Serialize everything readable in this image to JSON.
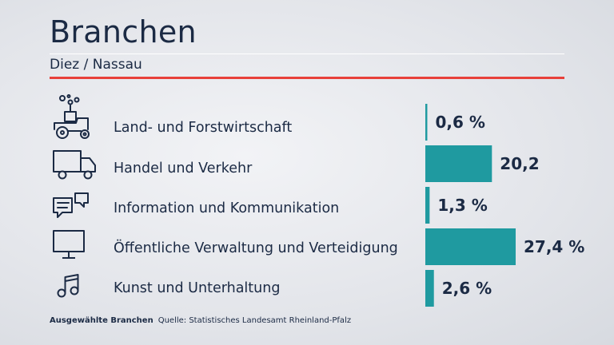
{
  "header": {
    "title": "Branchen",
    "subtitle": "Diez / Nassau"
  },
  "footer": {
    "label": "Ausgewählte Branchen",
    "source": "Quelle: Statistisches Landesamt Rheinland-Pfalz"
  },
  "colors": {
    "bar": "#1f9aa0",
    "accent_rule": "#e8403a",
    "text": "#1b2a44"
  },
  "rows": [
    {
      "icon": "tractor-icon",
      "label": "Land- und Forstwirtschaft"
    },
    {
      "icon": "truck-icon",
      "label": "Handel und Verkehr"
    },
    {
      "icon": "chat-bubbles-icon",
      "label": "Information und Kommunikation"
    },
    {
      "icon": "monitor-icon",
      "label": "Öffentliche Verwaltung und Verteidigung"
    },
    {
      "icon": "music-note-icon",
      "label": "Kunst und Unterhaltung"
    }
  ],
  "chart_data": {
    "type": "bar",
    "orientation": "horizontal",
    "categories": [
      "Land- und Forstwirtschaft",
      "Handel und Verkehr",
      "Information und Kommunikation",
      "Öffentliche Verwaltung und Verteidigung",
      "Kunst und Unterhaltung"
    ],
    "values": [
      0.6,
      20.2,
      1.3,
      27.4,
      2.6
    ],
    "value_labels": [
      "0,6 %",
      "20,2",
      "1,3 %",
      "27,4 %",
      "2,6 %"
    ],
    "unit": "%",
    "xlim": [
      0,
      27.4
    ],
    "grid": false,
    "legend": "none"
  }
}
